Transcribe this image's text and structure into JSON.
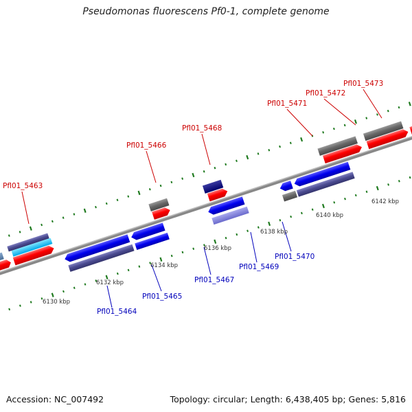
{
  "title": "Pseudomonas fluorescens Pf0-1, complete genome",
  "footer": {
    "accession": "Accession: NC_007492",
    "summary": "Topology: circular; Length: 6,438,405 bp; Genes: 5,816"
  },
  "scale_labels": [
    "6130 kbp",
    "6132 kbp",
    "6134 kbp",
    "6136 kbp",
    "6138 kbp",
    "6140 kbp",
    "6142 kbp"
  ],
  "forward_genes": [
    "Pfl01_5463",
    "Pfl01_5466",
    "Pfl01_5468",
    "Pfl01_5471",
    "Pfl01_5472",
    "Pfl01_5473"
  ],
  "reverse_genes": [
    "Pfl01_5464",
    "Pfl01_5465",
    "Pfl01_5467",
    "Pfl01_5469",
    "Pfl01_5470"
  ],
  "colors": {
    "cds": "#ff0000",
    "gene_gray": "#666666",
    "reverse_blue": "#0000ee",
    "reverse_slate": "#4a4a90",
    "forward_label": "#cc0000",
    "reverse_label": "#0000bb",
    "backbone": "#888888"
  }
}
